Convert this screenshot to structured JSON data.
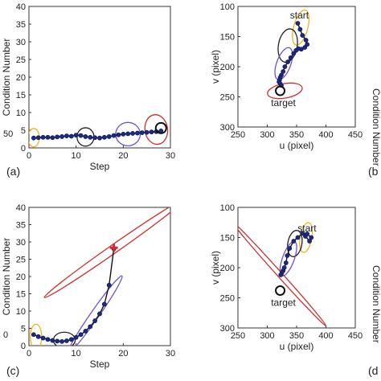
{
  "chart_data": [
    {
      "id": "a",
      "type": "line",
      "panel_label": "(a)",
      "xlabel": "Step",
      "ylabel": "Condition Number",
      "xlim": [
        0,
        30
      ],
      "ylim": [
        0,
        40
      ],
      "xticks": [
        "0",
        "10",
        "20",
        "30"
      ],
      "yticks": [
        "0",
        "5",
        "10",
        "15",
        "20",
        "25",
        "30",
        "35",
        "40"
      ],
      "series": [
        {
          "x": [
            1,
            2,
            3,
            4,
            5,
            6,
            7,
            8,
            9,
            10,
            11,
            12,
            13,
            14,
            15,
            16,
            17,
            18,
            19,
            20,
            21,
            22,
            23,
            24,
            25,
            26,
            27,
            28
          ],
          "y": [
            2.8,
            2.9,
            3.0,
            3.0,
            2.9,
            3.1,
            3.2,
            3.4,
            3.3,
            3.6,
            3.5,
            3.2,
            3.0,
            2.9,
            2.8,
            3.0,
            3.2,
            3.5,
            3.7,
            3.9,
            4.0,
            4.1,
            4.2,
            4.3,
            4.4,
            4.5,
            4.6,
            4.8
          ]
        }
      ],
      "ellipses": [
        {
          "cx": 1,
          "cy": 2.9,
          "rx": 1.2,
          "ry": 2.6,
          "angle": 0,
          "color": "#f2b21b"
        },
        {
          "cx": 12,
          "cy": 3.1,
          "rx": 1.8,
          "ry": 2.6,
          "angle": 0,
          "color": "#222222"
        },
        {
          "cx": 21,
          "cy": 3.9,
          "rx": 2.6,
          "ry": 3.3,
          "angle": 0,
          "color": "#6f52cf"
        },
        {
          "cx": 27,
          "cy": 5.2,
          "rx": 2.4,
          "ry": 4.2,
          "angle": -8,
          "color": "#cf2d2d"
        }
      ],
      "end_marker": {
        "x": 28,
        "y": 5.6,
        "color": "#111111"
      }
    },
    {
      "id": "b",
      "type": "line",
      "panel_label": "(b",
      "xlabel": "u (pixel)",
      "ylabel": "v (pixel)",
      "xlim": [
        250,
        450
      ],
      "ylim": [
        100,
        300
      ],
      "y_reversed": true,
      "xticks": [
        "250",
        "300",
        "350",
        "400",
        "450"
      ],
      "yticks": [
        "100",
        "150",
        "200",
        "250",
        "300"
      ],
      "series": [
        {
          "x": [
            352,
            356,
            360,
            366,
            368,
            364,
            358,
            353,
            349,
            345,
            340,
            335,
            330,
            327,
            324,
            322,
            321,
            320,
            322,
            324
          ],
          "y": [
            128,
            138,
            148,
            156,
            163,
            168,
            171,
            170,
            173,
            178,
            185,
            192,
            200,
            208,
            214,
            218,
            222,
            225,
            228,
            231
          ]
        }
      ],
      "ellipses": [
        {
          "cx": 357,
          "cy": 135,
          "rx": 12,
          "ry": 30,
          "angle": 15,
          "color": "#f2b21b"
        },
        {
          "cx": 335,
          "cy": 165,
          "rx": 16,
          "ry": 28,
          "angle": 10,
          "color": "#222222"
        },
        {
          "cx": 328,
          "cy": 195,
          "rx": 12,
          "ry": 28,
          "angle": 20,
          "color": "#6f52cf"
        },
        {
          "cx": 330,
          "cy": 240,
          "rx": 30,
          "ry": 12,
          "angle": -10,
          "color": "#cf2d2d"
        }
      ],
      "start_label": "start",
      "target_label": "target",
      "target_marker": {
        "x": 322,
        "y": 240
      }
    },
    {
      "id": "c",
      "type": "line",
      "panel_label": "(c)",
      "xlabel": "Step",
      "ylabel": "Condition Number",
      "xlim": [
        0,
        30
      ],
      "ylim": [
        0,
        40
      ],
      "xticks": [
        "0",
        "10",
        "20",
        "30"
      ],
      "yticks": [
        "0",
        "5",
        "10",
        "15",
        "20",
        "25",
        "30",
        "35",
        "40"
      ],
      "series": [
        {
          "x": [
            1,
            2,
            3,
            4,
            5,
            6,
            7,
            8,
            9,
            10,
            11,
            12,
            13,
            14,
            15,
            16,
            17,
            18
          ],
          "y": [
            3.2,
            2.6,
            2.2,
            1.8,
            1.5,
            1.3,
            1.2,
            1.4,
            1.8,
            2.4,
            3.2,
            4.2,
            5.5,
            7.2,
            9.2,
            12.0,
            17.5,
            28.0
          ]
        }
      ],
      "ellipses": [
        {
          "cx": 1.5,
          "cy": 2.6,
          "rx": 1.2,
          "ry": 3.6,
          "angle": 0,
          "color": "#f2b21b"
        },
        {
          "cx": 7.5,
          "cy": 1.6,
          "rx": 2.3,
          "ry": 2.3,
          "angle": 0,
          "color": "#222222"
        },
        {
          "cx": 14,
          "cy": 9,
          "rx": 10,
          "ry": 1.2,
          "angle": -55,
          "color": "#6f52cf"
        },
        {
          "cx": 18,
          "cy": 28,
          "rx": 18,
          "ry": 1.2,
          "angle": -35,
          "color": "#cf2d2d"
        }
      ],
      "end_marker": {
        "x": 18,
        "y": 28.3,
        "color": "#cf2d2d"
      }
    },
    {
      "id": "d",
      "type": "line",
      "panel_label": "(d",
      "xlabel": "u (pixel)",
      "ylabel": "v (pixel)",
      "xlim": [
        250,
        450
      ],
      "ylim": [
        100,
        300
      ],
      "y_reversed": true,
      "xticks": [
        "250",
        "300",
        "350",
        "400",
        "450"
      ],
      "yticks": [
        "100",
        "150",
        "200",
        "250",
        "300"
      ],
      "series": [
        {
          "x": [
            365,
            372,
            375,
            368,
            360,
            352,
            345,
            338,
            334,
            332,
            329,
            327,
            325,
            323
          ],
          "y": [
            148,
            156,
            150,
            144,
            143,
            150,
            156,
            168,
            180,
            192,
            200,
            205,
            208,
            212
          ]
        }
      ],
      "ellipses": [
        {
          "cx": 366,
          "cy": 150,
          "rx": 10,
          "ry": 25,
          "angle": 10,
          "color": "#f2b21b"
        },
        {
          "cx": 347,
          "cy": 160,
          "rx": 12,
          "ry": 22,
          "angle": 10,
          "color": "#222222"
        },
        {
          "cx": 336,
          "cy": 185,
          "rx": 10,
          "ry": 30,
          "angle": 20,
          "color": "#6f52cf"
        },
        {
          "cx": 320,
          "cy": 210,
          "rx": 120,
          "ry": 4,
          "angle": 48,
          "color": "#cf2d2d"
        }
      ],
      "start_label": "start",
      "target_label": "target",
      "target_marker": {
        "x": 322,
        "y": 238
      }
    }
  ],
  "right_edge_label": "Condition Number",
  "left_edge_tick_a": "50",
  "left_edge_tick_c": "0"
}
